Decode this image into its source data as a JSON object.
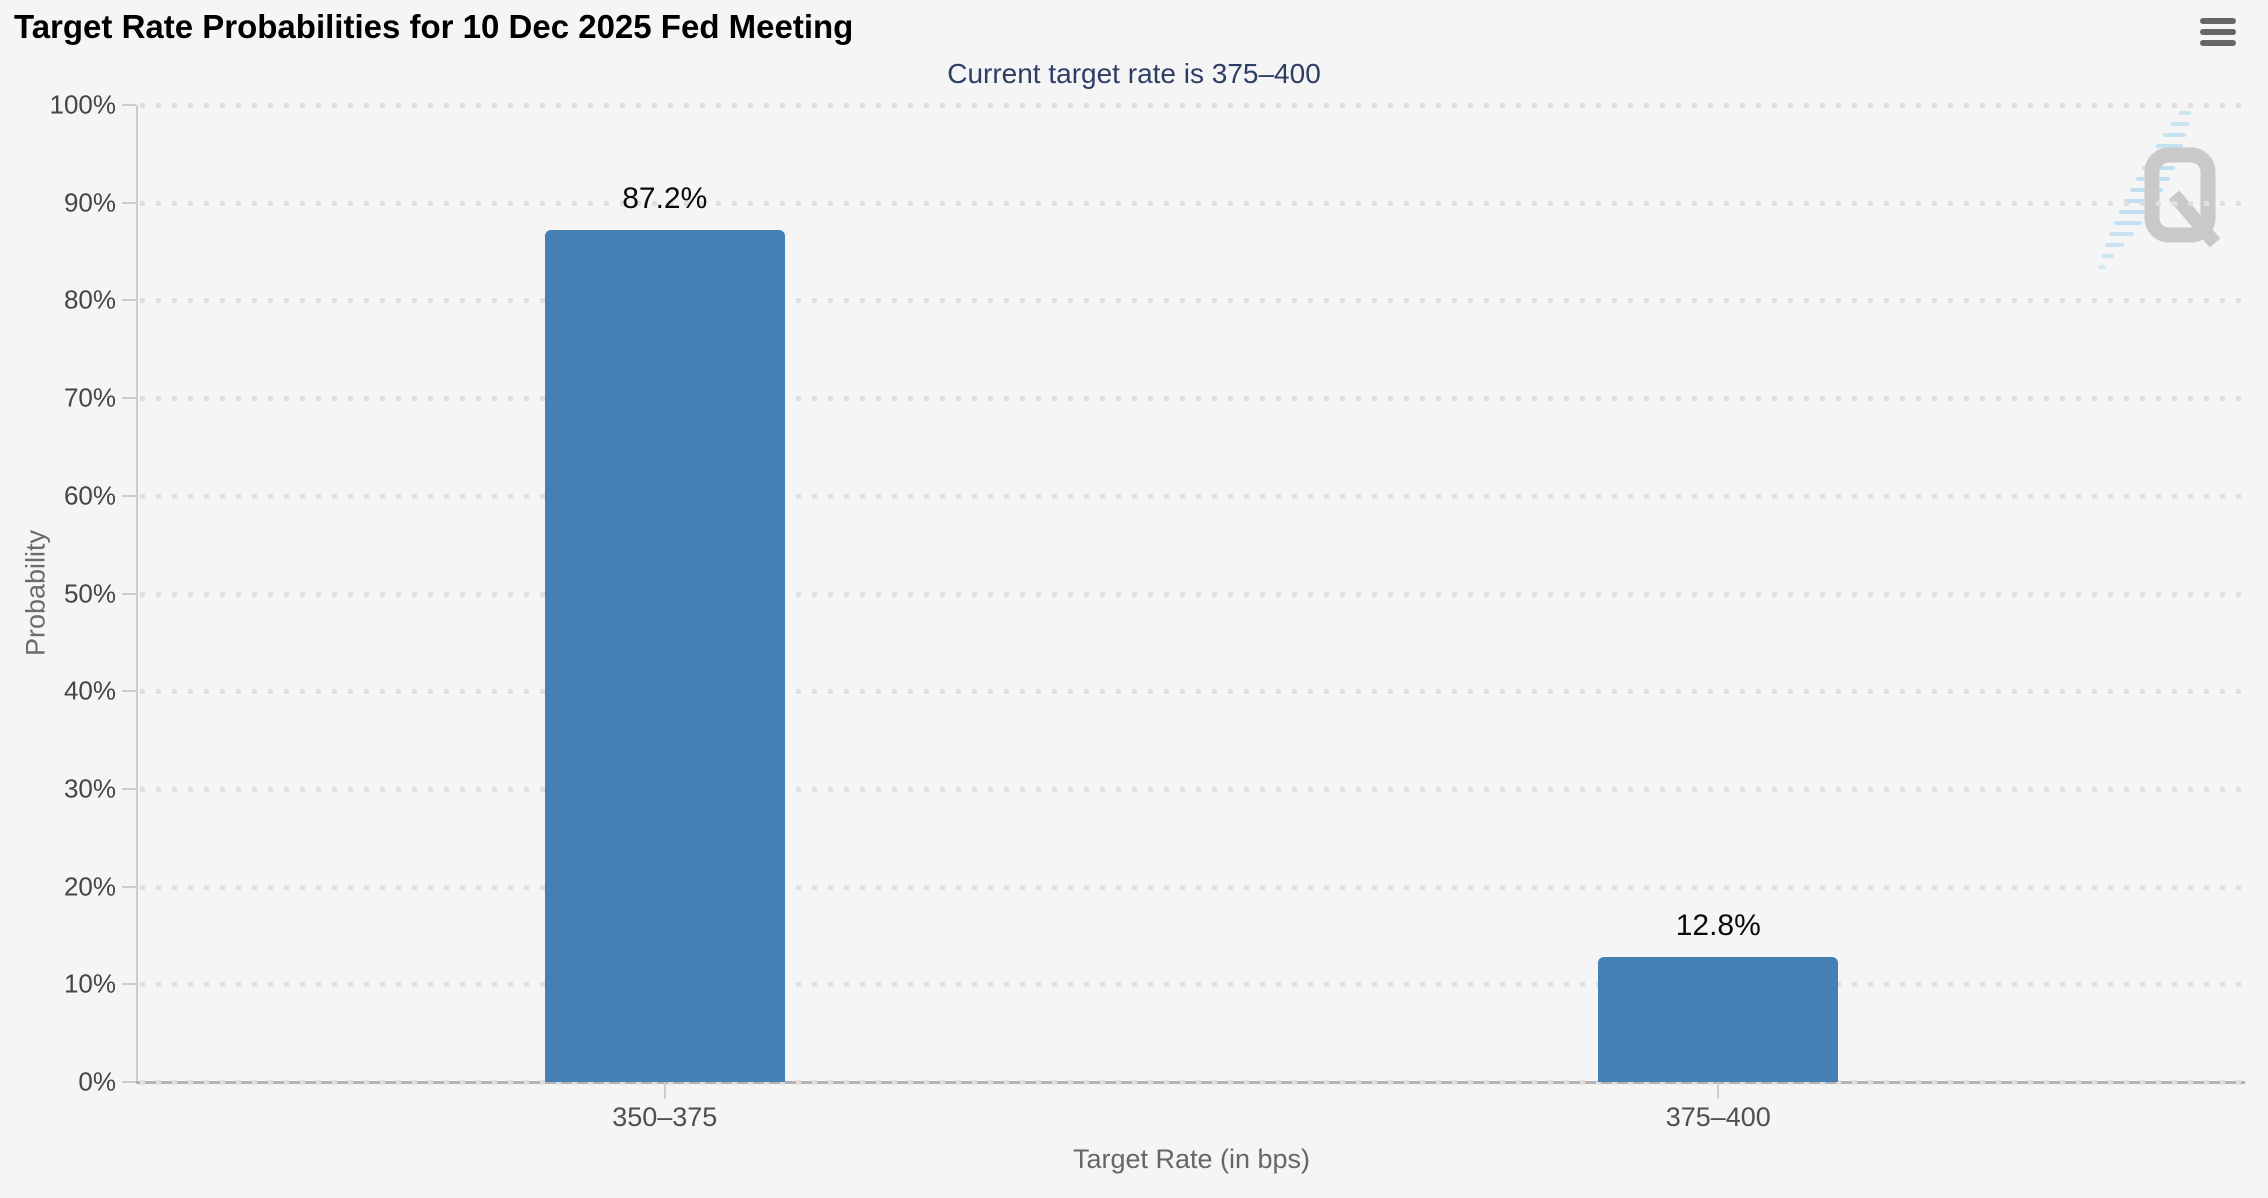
{
  "header": {
    "title": "Target Rate Probabilities for 10 Dec 2025 Fed Meeting",
    "export_menu_icon": "hamburger-icon"
  },
  "chart_data": {
    "type": "bar",
    "title": "Target Rate Probabilities for 10 Dec 2025 Fed Meeting",
    "subtitle": "Current target rate is 375–400",
    "categories": [
      "350–375",
      "375–400"
    ],
    "values": [
      87.2,
      12.8
    ],
    "data_labels": [
      "87.2%",
      "12.8%"
    ],
    "xlabel": "Target Rate (in bps)",
    "ylabel": "Probability",
    "ylim": [
      0,
      100
    ],
    "ytick_step": 10,
    "ytick_suffix": "%",
    "grid": "dotted-horizontal",
    "legend": "none",
    "colors": {
      "bar": "#4580b4",
      "subtitle": "#2e3d64",
      "background": "#f5f5f5",
      "grid_dots": "#e0e0e0",
      "axis_line": "#cccccc"
    }
  },
  "watermark": {
    "name": "quikstrike-q-logo"
  }
}
